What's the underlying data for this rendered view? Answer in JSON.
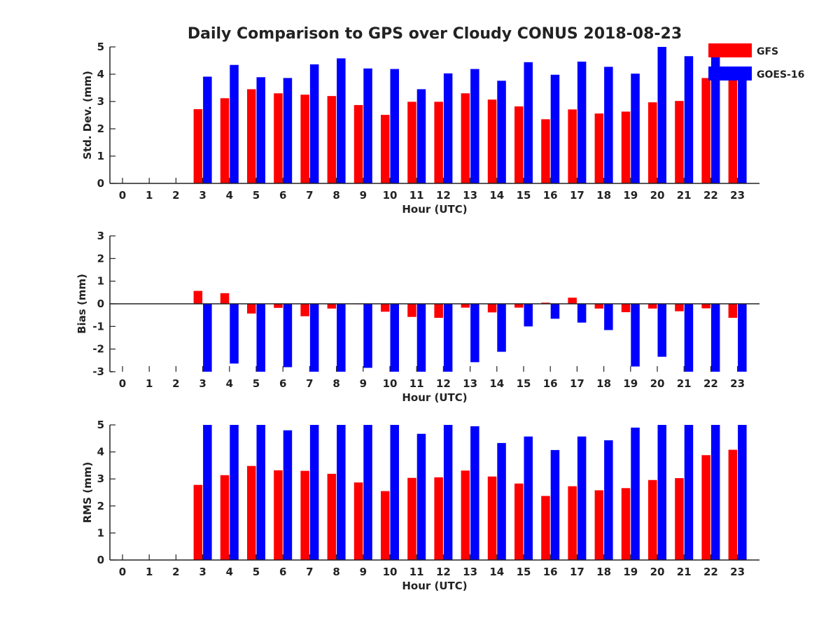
{
  "figure_title": "Daily Comparison to GPS over Cloudy CONUS 2018-08-23",
  "colors": {
    "gfs": "#ff0000",
    "goes": "#0000ff",
    "axis": "#222222"
  },
  "legend": {
    "placement": "top-right",
    "entries": [
      "GFS",
      "GOES-16"
    ]
  },
  "chart_data": [
    {
      "id": "std",
      "type": "bar",
      "title": "",
      "xlabel": "Hour (UTC)",
      "ylabel": "Std. Dev. (mm)",
      "ylim": [
        0,
        5
      ],
      "yticks": [
        "0",
        "1",
        "2",
        "3",
        "4",
        "5"
      ],
      "categories": [
        "0",
        "1",
        "2",
        "3",
        "4",
        "5",
        "6",
        "7",
        "8",
        "9",
        "10",
        "11",
        "12",
        "13",
        "14",
        "15",
        "16",
        "17",
        "18",
        "19",
        "20",
        "21",
        "22",
        "23"
      ],
      "series": [
        {
          "name": "GFS",
          "values": [
            null,
            null,
            null,
            2.72,
            3.12,
            3.45,
            3.3,
            3.25,
            3.2,
            2.87,
            2.51,
            2.99,
            2.99,
            3.3,
            3.07,
            2.82,
            2.35,
            2.71,
            2.56,
            2.63,
            2.97,
            3.02,
            3.86,
            3.9
          ]
        },
        {
          "name": "GOES-16",
          "values": [
            null,
            null,
            null,
            3.91,
            4.34,
            3.89,
            3.86,
            4.36,
            4.58,
            4.21,
            4.19,
            3.45,
            4.03,
            4.19,
            3.76,
            4.44,
            3.98,
            4.46,
            4.27,
            4.02,
            5.0,
            4.66,
            4.85,
            3.8
          ]
        }
      ]
    },
    {
      "id": "bias",
      "type": "bar",
      "title": "",
      "xlabel": "Hour (UTC)",
      "ylabel": "Bias (mm)",
      "ylim": [
        -3,
        3
      ],
      "yticks": [
        "-3",
        "-2",
        "-1",
        "0",
        "1",
        "2",
        "3"
      ],
      "categories": [
        "0",
        "1",
        "2",
        "3",
        "4",
        "5",
        "6",
        "7",
        "8",
        "9",
        "10",
        "11",
        "12",
        "13",
        "14",
        "15",
        "16",
        "17",
        "18",
        "19",
        "20",
        "21",
        "22",
        "23"
      ],
      "series": [
        {
          "name": "GFS",
          "values": [
            null,
            null,
            null,
            0.57,
            0.47,
            -0.43,
            -0.18,
            -0.55,
            -0.21,
            -0.02,
            -0.35,
            -0.58,
            -0.62,
            -0.17,
            -0.38,
            -0.17,
            0.05,
            0.27,
            -0.21,
            -0.37,
            -0.21,
            -0.33,
            -0.2,
            -0.62
          ]
        },
        {
          "name": "GOES-16",
          "values": [
            null,
            null,
            null,
            -3.0,
            -2.64,
            -3.0,
            -2.8,
            -3.0,
            -3.0,
            -2.83,
            -3.0,
            -3.0,
            -3.0,
            -2.58,
            -2.12,
            -1.0,
            -0.66,
            -0.83,
            -1.16,
            -2.77,
            -2.34,
            -3.0,
            -3.0,
            -3.0
          ]
        }
      ]
    },
    {
      "id": "rms",
      "type": "bar",
      "title": "",
      "xlabel": "Hour (UTC)",
      "ylabel": "RMS (mm)",
      "ylim": [
        0,
        5
      ],
      "yticks": [
        "0",
        "1",
        "2",
        "3",
        "4",
        "5"
      ],
      "categories": [
        "0",
        "1",
        "2",
        "3",
        "4",
        "5",
        "6",
        "7",
        "8",
        "9",
        "10",
        "11",
        "12",
        "13",
        "14",
        "15",
        "16",
        "17",
        "18",
        "19",
        "20",
        "21",
        "22",
        "23"
      ],
      "series": [
        {
          "name": "GFS",
          "values": [
            null,
            null,
            null,
            2.78,
            3.14,
            3.48,
            3.32,
            3.3,
            3.19,
            2.87,
            2.55,
            3.04,
            3.06,
            3.31,
            3.09,
            2.83,
            2.37,
            2.73,
            2.58,
            2.66,
            2.96,
            3.03,
            3.88,
            4.08
          ]
        },
        {
          "name": "GOES-16",
          "values": [
            null,
            null,
            null,
            5.0,
            5.0,
            5.0,
            4.8,
            5.0,
            5.0,
            5.0,
            5.0,
            4.67,
            5.0,
            4.95,
            4.33,
            4.57,
            4.07,
            4.57,
            4.43,
            4.9,
            5.0,
            5.0,
            5.0,
            5.0
          ]
        }
      ]
    }
  ]
}
